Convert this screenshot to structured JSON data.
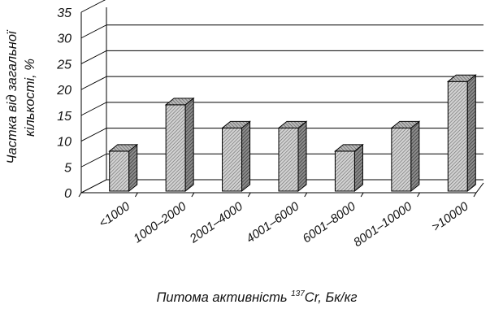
{
  "chart_data": {
    "type": "bar",
    "title": "",
    "categories": [
      "<1000",
      "1000–2000",
      "2001–4000",
      "4001–6000",
      "6001–8000",
      "8001–10000",
      ">10000"
    ],
    "values": [
      9,
      18,
      13.5,
      13.5,
      9,
      13.5,
      22.5
    ],
    "ylim": [
      0,
      35
    ],
    "yticks": [
      "0",
      "5",
      "10",
      "15",
      "20",
      "25",
      "30",
      "35"
    ],
    "ylabel_line1": "Частка від загальної",
    "ylabel_line2": "кількості, %",
    "xlabel_prefix": "Питома активність ",
    "xlabel_sup": "137",
    "xlabel_suffix": "Cr, Бк/кг",
    "grid": true,
    "legend": "none",
    "style": "3d-hatched-bars",
    "colors": {
      "bar_fill": "#bdbdbd",
      "bar_top": "#9a9a9a",
      "bar_side": "#6e6e6e",
      "grid": "#000000"
    }
  }
}
